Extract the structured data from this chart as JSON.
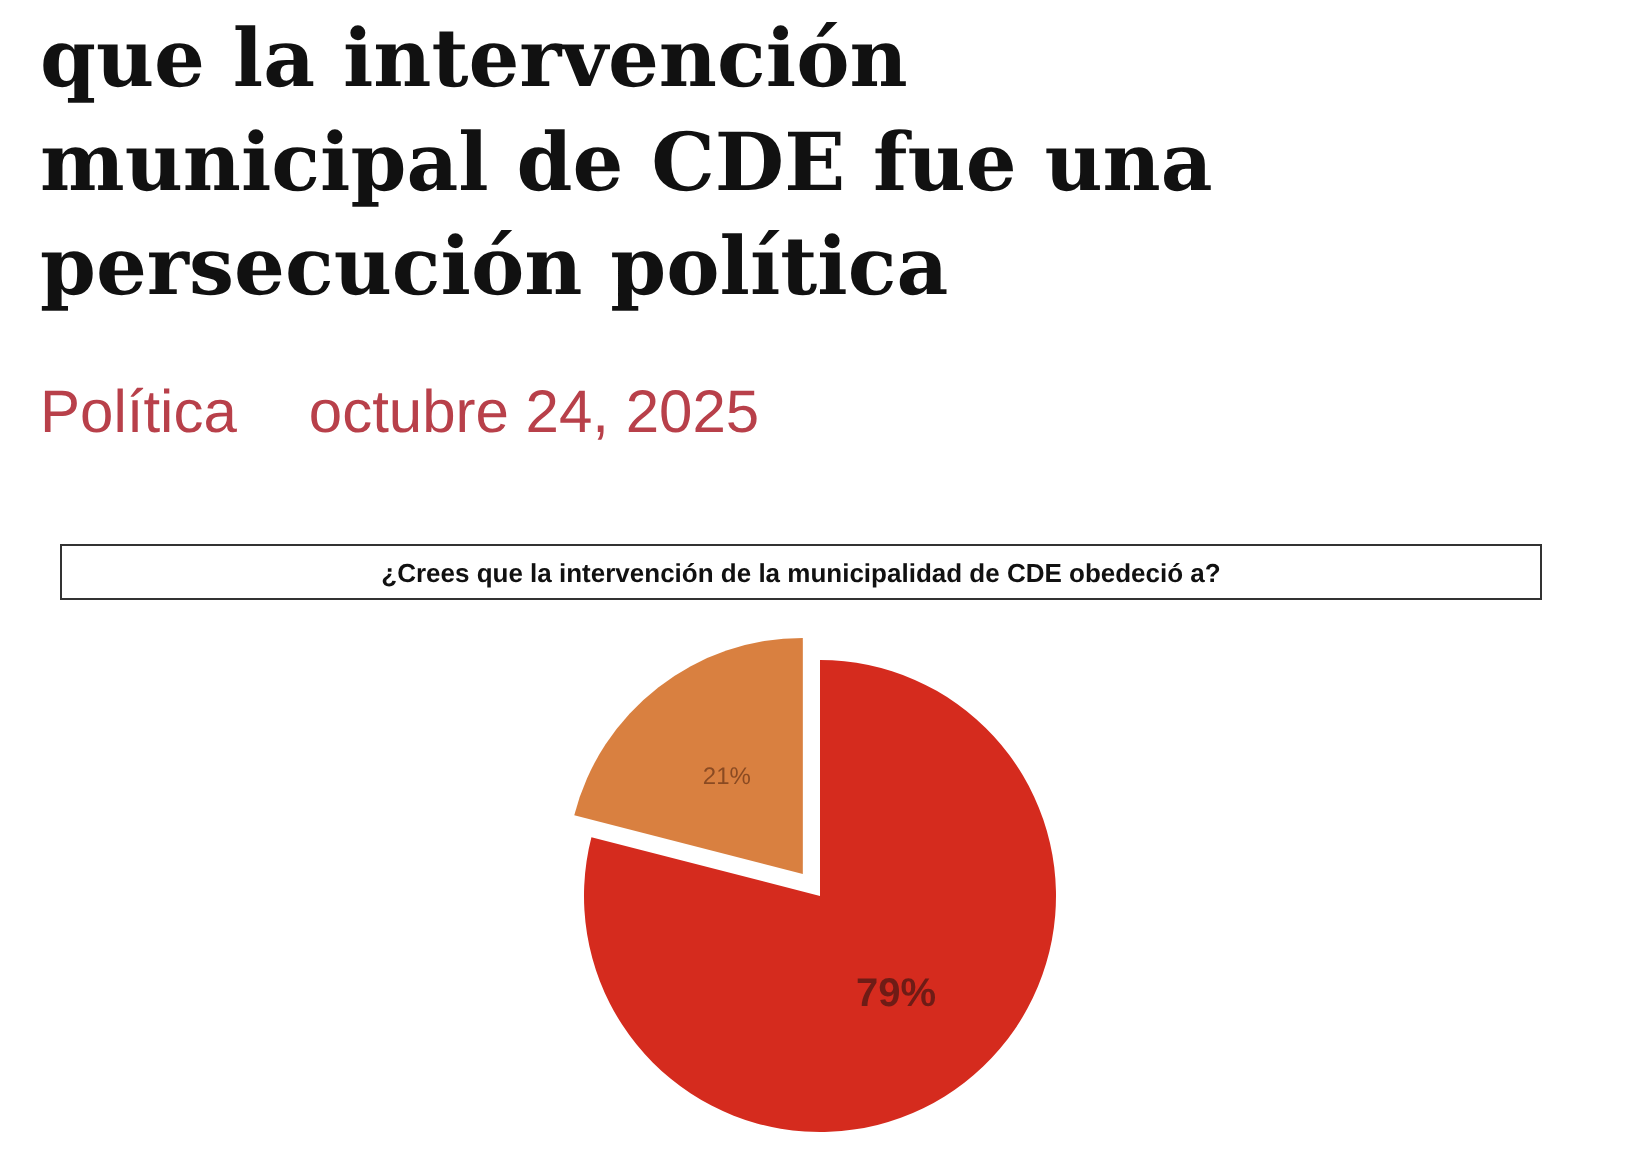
{
  "chart_data": {
    "type": "pie",
    "title": "que la intervención municipal de CDE fue una persecución política",
    "subtitle": "¿Crees que la intervención de la municipalidad de CDE obedeció a?",
    "annotations": [
      "Política",
      "octubre 24, 2025"
    ],
    "categories": [
      null,
      null
    ],
    "values": [
      79,
      21
    ],
    "colors": [
      "#d52b1e",
      "#d98040"
    ],
    "value_labels": [
      "79%",
      "21%"
    ]
  }
}
